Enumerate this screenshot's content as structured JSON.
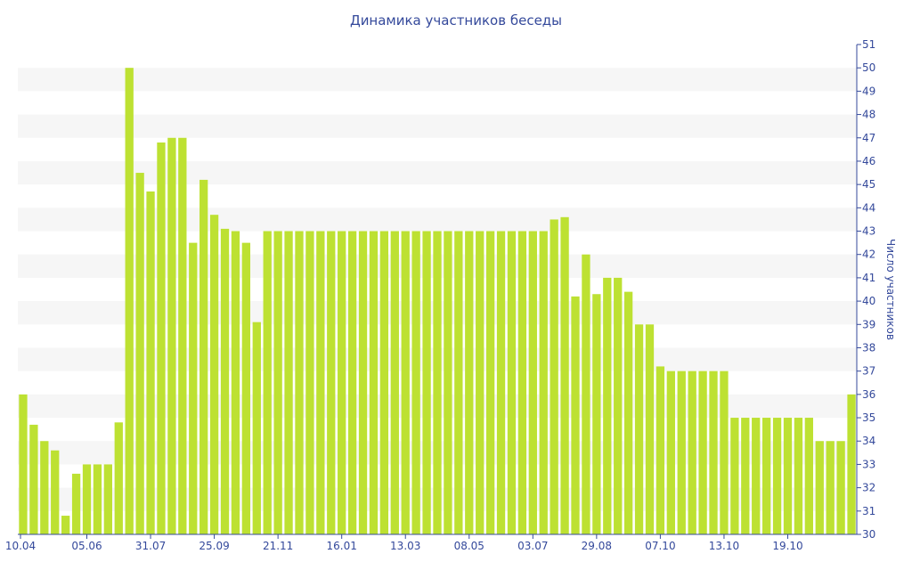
{
  "chart_data": {
    "type": "bar",
    "title": "Динамика участников беседы",
    "xlabel": "",
    "ylabel": "Число участников",
    "ylim": [
      30,
      51
    ],
    "yticks": [
      30,
      31,
      32,
      33,
      34,
      35,
      36,
      37,
      38,
      39,
      40,
      41,
      42,
      43,
      44,
      45,
      46,
      47,
      48,
      49,
      50,
      51
    ],
    "x_tick_labels": [
      {
        "index": 0,
        "label": "10.04"
      },
      {
        "index": 6,
        "label": "05.06"
      },
      {
        "index": 12,
        "label": "31.07"
      },
      {
        "index": 18,
        "label": "25.09"
      },
      {
        "index": 24,
        "label": "21.11"
      },
      {
        "index": 30,
        "label": "16.01"
      },
      {
        "index": 36,
        "label": "13.03"
      },
      {
        "index": 42,
        "label": "08.05"
      },
      {
        "index": 48,
        "label": "03.07"
      },
      {
        "index": 54,
        "label": "29.08"
      },
      {
        "index": 60,
        "label": "07.10"
      },
      {
        "index": 66,
        "label": "13.10"
      },
      {
        "index": 72,
        "label": "19.10"
      }
    ],
    "values": [
      36,
      34.7,
      34,
      33.6,
      30.8,
      32.6,
      33,
      33,
      33,
      34.8,
      50,
      45.5,
      44.7,
      46.8,
      47,
      47,
      42.5,
      45.2,
      43.7,
      43.1,
      43,
      42.5,
      39.1,
      43,
      43,
      43,
      43,
      43,
      43,
      43,
      43,
      43,
      43,
      43,
      43,
      43,
      43,
      43,
      43,
      43,
      43,
      43,
      43,
      43,
      43,
      43,
      43,
      43,
      43,
      43,
      43.5,
      43.6,
      40.2,
      42,
      40.3,
      41,
      41,
      40.4,
      39,
      39,
      37.2,
      37,
      37,
      37,
      37,
      37,
      37,
      35,
      35,
      35,
      35,
      35,
      35,
      35,
      35,
      34,
      34,
      34,
      36
    ],
    "bar_color": "#bde132",
    "text_color": "#34499b",
    "grid": "alternating bands",
    "legend": "none"
  }
}
